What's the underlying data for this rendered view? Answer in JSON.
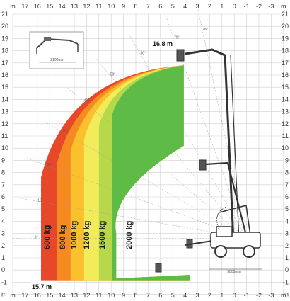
{
  "chart_data": {
    "type": "area",
    "title": "",
    "xlabel": "m",
    "ylabel": "m",
    "x_ticks": [
      "m",
      "17",
      "16",
      "15",
      "14",
      "13",
      "12",
      "11",
      "10",
      "9",
      "8",
      "7",
      "6",
      "5",
      "4",
      "3",
      "2",
      "1",
      "0",
      "-1",
      "-2",
      "-3",
      "m"
    ],
    "y_ticks": [
      "21",
      "20",
      "19",
      "18",
      "17",
      "16",
      "15",
      "14",
      "13",
      "12",
      "11",
      "10",
      "9",
      "8",
      "7",
      "6",
      "5",
      "4",
      "3",
      "2",
      "1",
      "0",
      "-1",
      "m"
    ],
    "xlim": [
      17,
      -3
    ],
    "ylim": [
      -1,
      20
    ],
    "grid": true,
    "zones": [
      {
        "label": "600 kg",
        "color": "#e8482a",
        "outer_reach": 15.7
      },
      {
        "label": "800 kg",
        "color": "#f58a22",
        "outer_reach": 14.4
      },
      {
        "label": "1000 kg",
        "color": "#fbc02d",
        "outer_reach": 13.3
      },
      {
        "label": "1200 kg",
        "color": "#f2ec5a",
        "outer_reach": 12.2
      },
      {
        "label": "1500 kg",
        "color": "#b7d84a",
        "outer_reach": 11.0
      },
      {
        "label": "2000 kg",
        "color": "#5dbb46",
        "outer_reach": 9.9
      }
    ],
    "annotations": {
      "max_height": "16,8 m",
      "max_reach": "15,7 m",
      "angles": [
        "0°",
        "10°",
        "20°",
        "30°",
        "40°",
        "50°",
        "60°",
        "70°",
        "78°"
      ],
      "dim_top": "2100mm",
      "dim_bottom": "3800mm"
    },
    "colors": {
      "grid": "#cfcfcf",
      "text": "#333333"
    }
  }
}
